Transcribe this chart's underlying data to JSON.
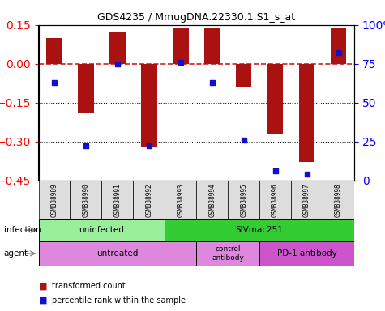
{
  "title": "GDS4235 / MmugDNA.22330.1.S1_s_at",
  "samples": [
    "GSM838989",
    "GSM838990",
    "GSM838991",
    "GSM838992",
    "GSM838993",
    "GSM838994",
    "GSM838995",
    "GSM838996",
    "GSM838997",
    "GSM838998"
  ],
  "bar_values": [
    0.1,
    -0.19,
    0.12,
    -0.32,
    0.14,
    0.14,
    -0.09,
    -0.27,
    -0.38,
    0.14
  ],
  "percentile_values": [
    63,
    22,
    75,
    22,
    76,
    63,
    26,
    6,
    4,
    82
  ],
  "ylim_left": [
    -0.45,
    0.15
  ],
  "ylim_right": [
    0,
    100
  ],
  "yticks_left": [
    0.15,
    0,
    -0.15,
    -0.3,
    -0.45
  ],
  "yticks_right": [
    100,
    75,
    50,
    25,
    0
  ],
  "bar_color": "#aa1111",
  "dot_color": "#1111cc",
  "hline_color": "#cc2222",
  "dotted_color": "#111111",
  "infection_groups": [
    {
      "label": "uninfected",
      "start": 0,
      "end": 4,
      "color": "#99ee99"
    },
    {
      "label": "SIVmac251",
      "start": 4,
      "end": 10,
      "color": "#33cc33"
    }
  ],
  "agent_groups": [
    {
      "label": "untreated",
      "start": 0,
      "end": 5,
      "color": "#dd88dd"
    },
    {
      "label": "control\nantibody",
      "start": 5,
      "end": 7,
      "color": "#dd88dd"
    },
    {
      "label": "PD-1 antibody",
      "start": 7,
      "end": 10,
      "color": "#cc44cc"
    }
  ],
  "legend_items": [
    {
      "label": "transformed count",
      "color": "#aa1111",
      "marker": "s"
    },
    {
      "label": "percentile rank within the sample",
      "color": "#1111cc",
      "marker": "s"
    }
  ],
  "infection_label": "infection",
  "agent_label": "agent",
  "background_color": "#ffffff"
}
